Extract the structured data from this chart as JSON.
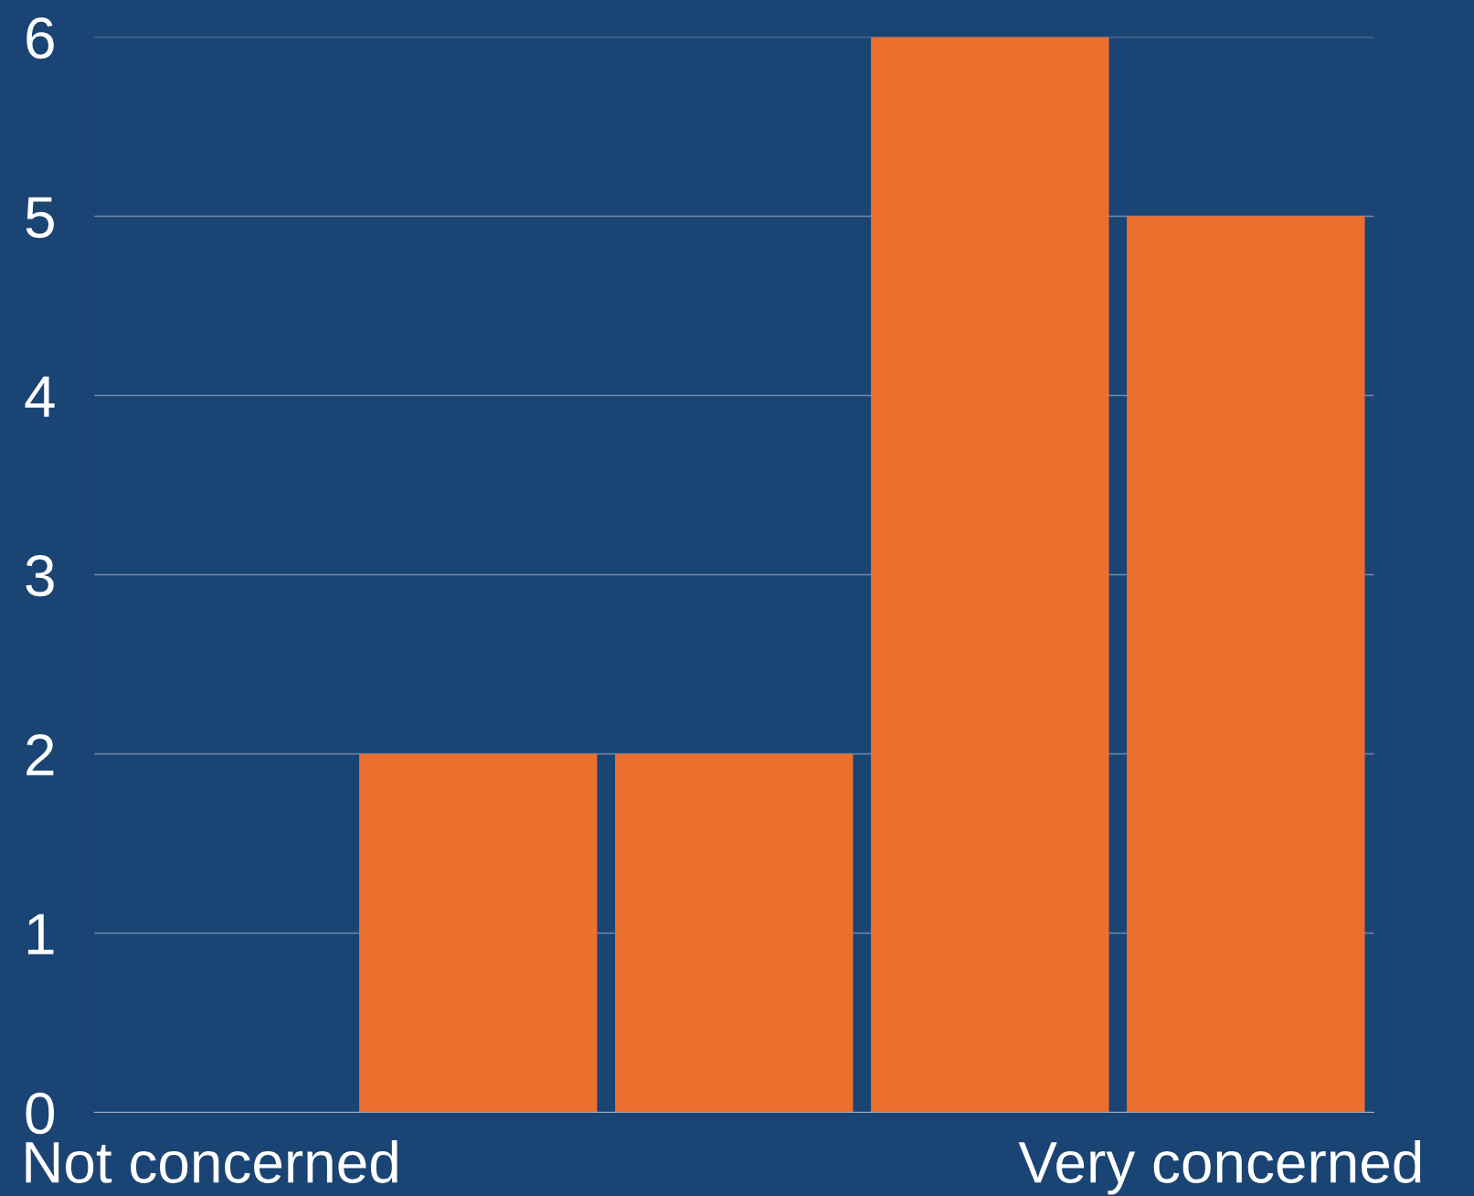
{
  "chart_data": {
    "type": "bar",
    "categories": [
      "Not concerned",
      null,
      null,
      null,
      "Very concerned"
    ],
    "values": [
      0,
      2,
      2,
      6,
      5
    ],
    "color": "#ed6f2d",
    "ylim": [
      0,
      6
    ],
    "yticks": [
      0,
      1,
      2,
      3,
      4,
      5,
      6
    ],
    "grid": "y",
    "legend": false
  }
}
